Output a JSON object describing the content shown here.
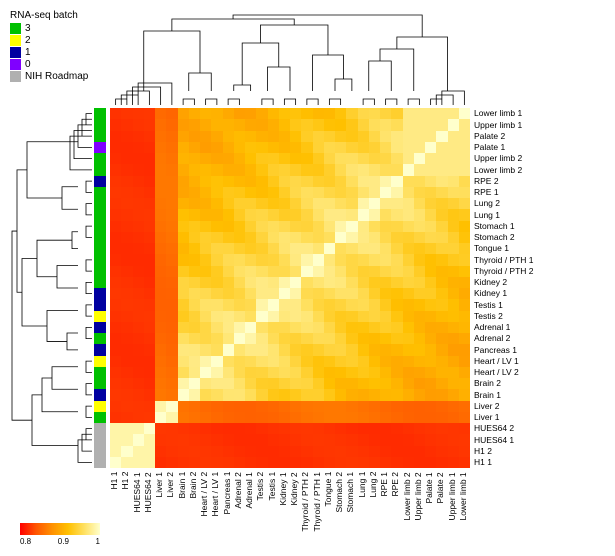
{
  "legend": {
    "title": "RNA-seq batch",
    "items": [
      {
        "label": "3",
        "color": "#00c000"
      },
      {
        "label": "2",
        "color": "#ffff00"
      },
      {
        "label": "1",
        "color": "#0000a0"
      },
      {
        "label": "0",
        "color": "#8000ff"
      },
      {
        "label": "NIH Roadmap",
        "color": "#b0b0b0"
      }
    ]
  },
  "sample_labels": [
    "Lower limb 1",
    "Upper limb 1",
    "Palate 2",
    "Palate 1",
    "Upper limb 2",
    "Lower limb 2",
    "RPE 2",
    "RPE 1",
    "Lung 2",
    "Lung 1",
    "Stomach 1",
    "Stomach 2",
    "Tongue 1",
    "Thyroid / PTH 1",
    "Thyroid / PTH 2",
    "Kidney 2",
    "Kidney 1",
    "Testis 1",
    "Testis 2",
    "Adrenal 1",
    "Adrenal 2",
    "Pancreas 1",
    "Heart / LV 1",
    "Heart / LV 2",
    "Brain 2",
    "Brain 1",
    "Liver 2",
    "Liver 1",
    "HUES64 2",
    "HUES64 1",
    "H1 2",
    "H1 1"
  ],
  "col_labels_bottom": [
    "H1 1",
    "H1 2",
    "HUES64 1",
    "HUES64 2",
    "Liver 1",
    "Liver 2",
    "Brain 1",
    "Brain 2",
    "Heart / LV 2",
    "Heart / LV 1",
    "Pancreas 1",
    "Adrenal 2",
    "Adrenal 1",
    "Testis 2",
    "Testis 1",
    "Kidney 1",
    "Kidney 2",
    "Thyroid / PTH 2",
    "Thyroid / PTH 1",
    "Tongue 1",
    "Stomach 2",
    "Stomach 1",
    "Lung 1",
    "Lung 2",
    "RPE 1",
    "RPE 2",
    "Lower limb 2",
    "Upper limb 2",
    "Palate 1",
    "Palate 2",
    "Upper limb 1",
    "Lower limb 1"
  ],
  "batch_assignment": [
    "3",
    "3",
    "3",
    "0",
    "3",
    "3",
    "1",
    "3",
    "3",
    "3",
    "3",
    "3",
    "3",
    "3",
    "3",
    "3",
    "1",
    "1",
    "2",
    "1",
    "3",
    "1",
    "2",
    "3",
    "3",
    "1",
    "2",
    "3",
    "NIH Roadmap",
    "NIH Roadmap",
    "NIH Roadmap",
    "NIH Roadmap"
  ],
  "batch_colors": {
    "3": "#00c000",
    "2": "#ffff00",
    "1": "#0000a0",
    "0": "#8000ff",
    "NIH Roadmap": "#b0b0b0"
  },
  "heatmap": {
    "type": "heatmap",
    "n": 32,
    "value_range": [
      0.78,
      1.0
    ],
    "colormap": {
      "stops": [
        {
          "v": 0.78,
          "color": "#ff0000"
        },
        {
          "v": 0.85,
          "color": "#ff5500"
        },
        {
          "v": 0.9,
          "color": "#ff9000"
        },
        {
          "v": 0.94,
          "color": "#ffc000"
        },
        {
          "v": 0.97,
          "color": "#ffe060"
        },
        {
          "v": 1.0,
          "color": "#ffffcc"
        }
      ]
    },
    "groups": [
      {
        "members": [
          0,
          1,
          2,
          3,
          4,
          5
        ],
        "within": 0.98,
        "name": "limbs_palate"
      },
      {
        "members": [
          6,
          7
        ],
        "within": 0.99,
        "name": "RPE"
      },
      {
        "members": [
          8,
          9
        ],
        "within": 0.99,
        "name": "Lung"
      },
      {
        "members": [
          10,
          11
        ],
        "within": 0.99,
        "name": "Stomach"
      },
      {
        "members": [
          12
        ],
        "within": 1.0,
        "name": "Tongue"
      },
      {
        "members": [
          13,
          14
        ],
        "within": 0.99,
        "name": "Thyroid"
      },
      {
        "members": [
          15,
          16
        ],
        "within": 0.99,
        "name": "Kidney"
      },
      {
        "members": [
          17,
          18
        ],
        "within": 0.99,
        "name": "Testis"
      },
      {
        "members": [
          19,
          20
        ],
        "within": 0.99,
        "name": "Adrenal"
      },
      {
        "members": [
          21
        ],
        "within": 1.0,
        "name": "Pancreas"
      },
      {
        "members": [
          22,
          23
        ],
        "within": 0.99,
        "name": "Heart"
      },
      {
        "members": [
          24,
          25
        ],
        "within": 0.99,
        "name": "Brain"
      },
      {
        "members": [
          26,
          27
        ],
        "within": 0.99,
        "name": "Liver"
      },
      {
        "members": [
          28,
          29,
          30,
          31
        ],
        "within": 0.99,
        "name": "ESC"
      }
    ],
    "between_somatic": 0.92,
    "between_esc_somatic": 0.82,
    "between_liver_other": 0.87
  },
  "colorbar": {
    "ticks": [
      "0.8",
      "0.9",
      "1"
    ],
    "gradient": "linear-gradient(to right, #ff0000, #ff5500, #ff9000, #ffc000, #ffe060, #ffffcc)"
  },
  "styling": {
    "background": "#ffffff",
    "label_fontsize": 8.5,
    "legend_fontsize": 10,
    "dendro_color": "#000000",
    "dendro_linewidth": 0.8
  }
}
